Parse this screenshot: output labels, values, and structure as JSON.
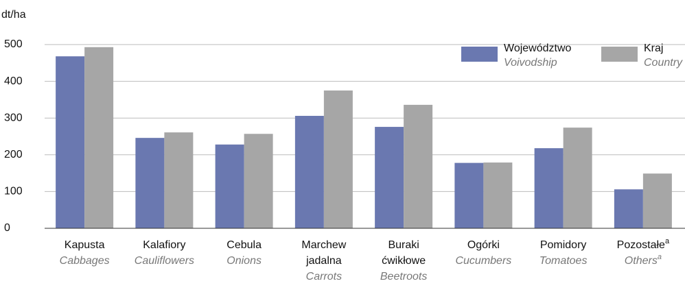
{
  "chart_data": {
    "type": "bar",
    "y_label": "dt/ha",
    "categories": [
      [
        "Kapusta"
      ],
      [
        "Kalafiory"
      ],
      [
        "Cebula"
      ],
      [
        "Marchew",
        "jadalna"
      ],
      [
        "Buraki",
        "ćwikłowe"
      ],
      [
        "Ogórki"
      ],
      [
        "Pomidory"
      ],
      [
        "Pozostałe"
      ]
    ],
    "categories_en": [
      "Cabbages",
      "Cauliflowers",
      "Onions",
      "Carrots",
      "Beetroots",
      "Cucumbers",
      "Tomatoes",
      "Others"
    ],
    "category_footnotes": [
      null,
      null,
      null,
      null,
      null,
      null,
      null,
      "a"
    ],
    "series": [
      {
        "name": "Województwo",
        "name_en": "Voivodship",
        "color": "#6a78b0",
        "values": [
          468,
          246,
          228,
          306,
          276,
          178,
          218,
          106
        ]
      },
      {
        "name": "Kraj",
        "name_en": "Country",
        "color": "#a6a6a6",
        "values": [
          493,
          261,
          257,
          375,
          336,
          179,
          274,
          149
        ]
      }
    ],
    "ylim": [
      0,
      500
    ],
    "yticks": [
      0,
      100,
      200,
      300,
      400,
      500
    ],
    "grid": true,
    "legend": "top-right"
  }
}
